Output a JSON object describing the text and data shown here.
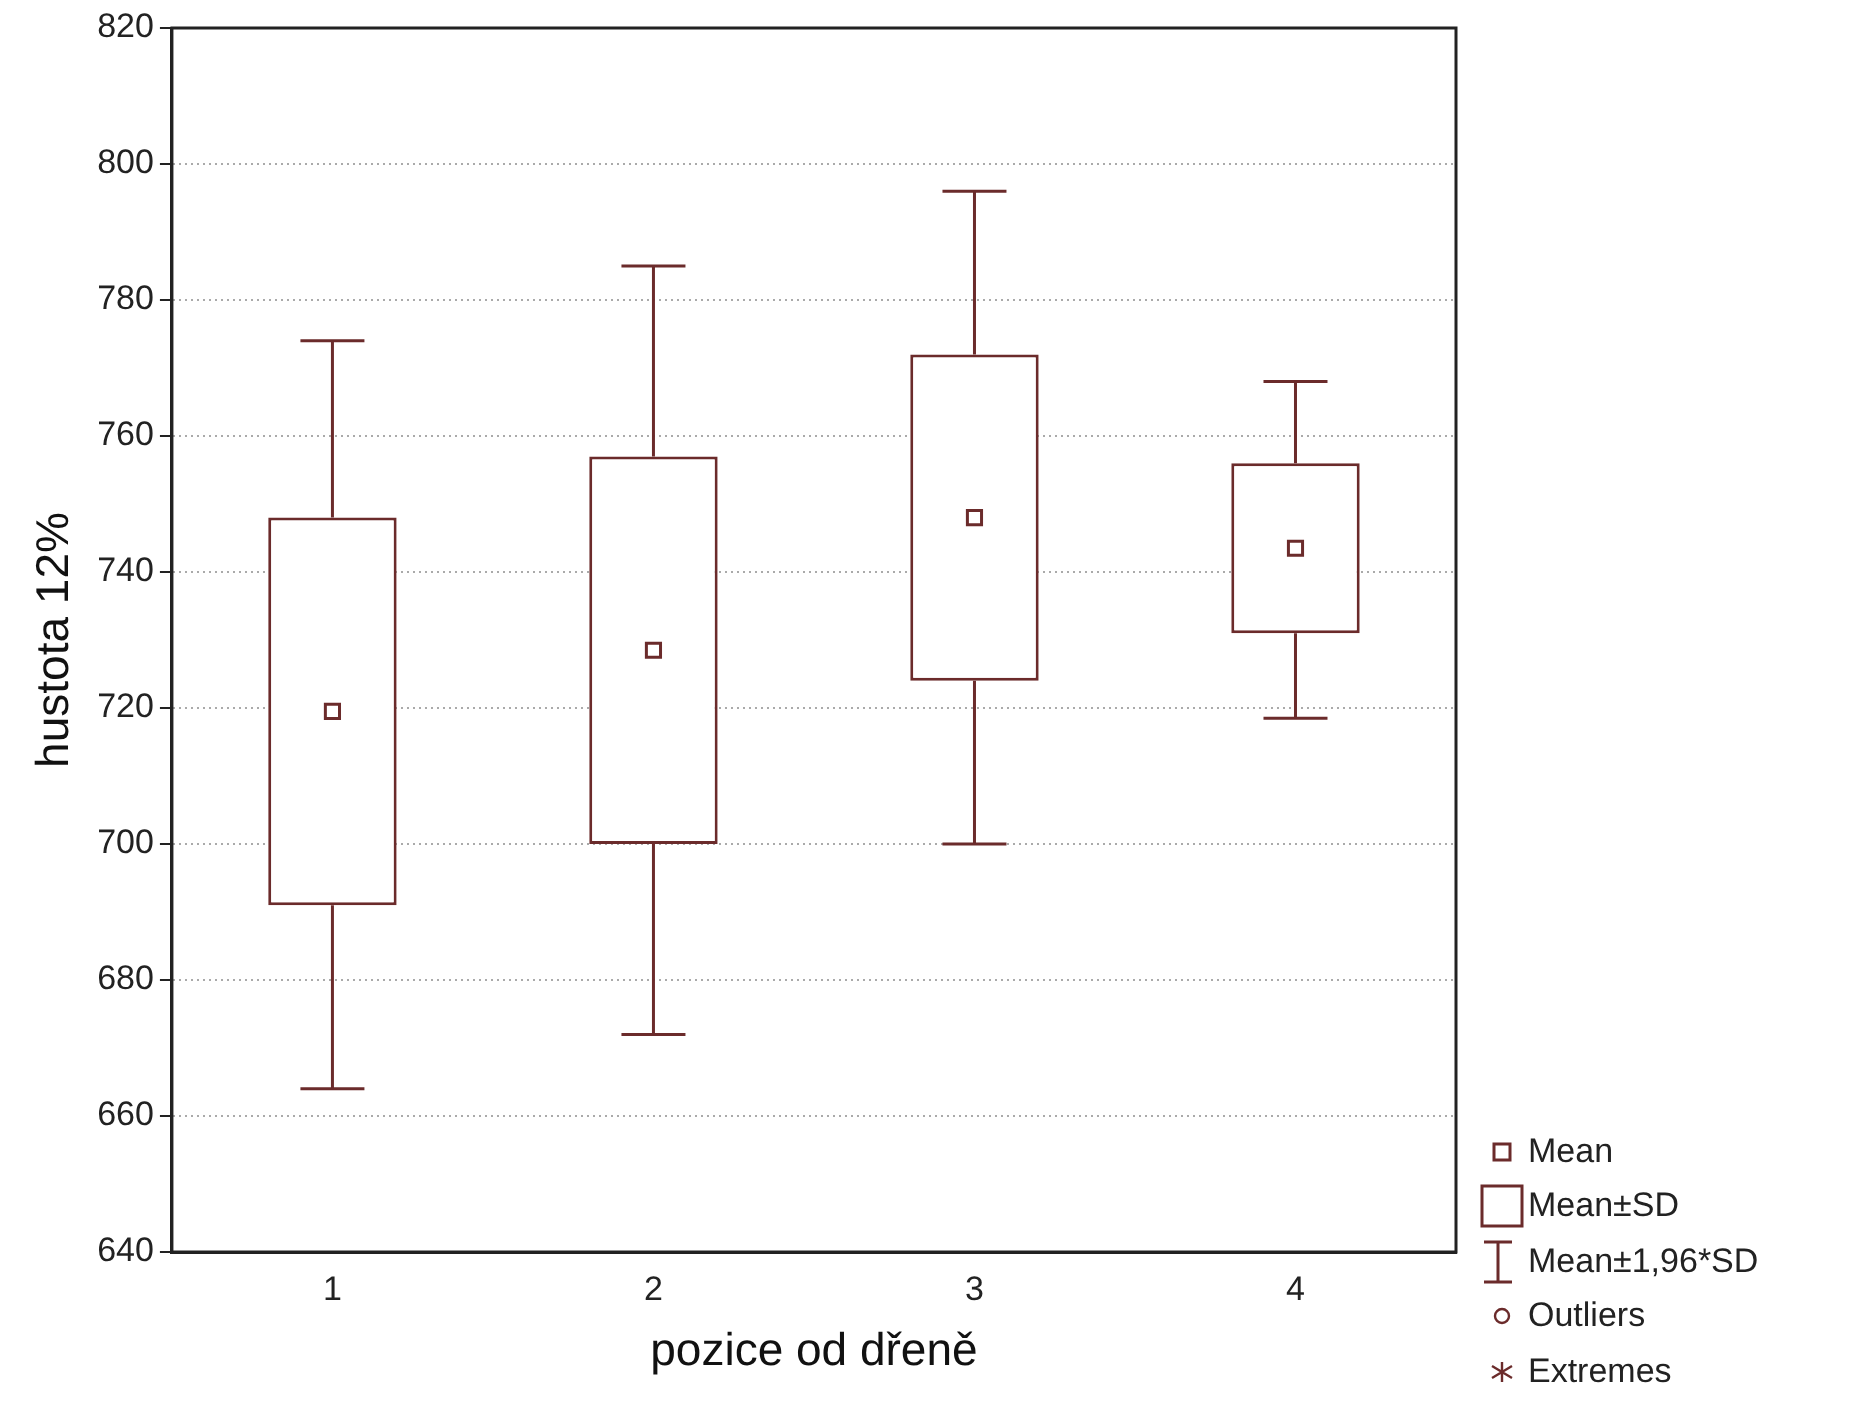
{
  "chart_data": {
    "type": "box",
    "xlabel": "pozice od dřeně",
    "ylabel": "hustota 12%",
    "categories": [
      "1",
      "2",
      "3",
      "4"
    ],
    "color": "#6b2b2b",
    "boxes": [
      {
        "low": 664,
        "q1": 691,
        "q3": 748,
        "high": 774,
        "mean": 719.5
      },
      {
        "low": 672,
        "q1": 700,
        "q3": 757,
        "high": 785,
        "mean": 728.5
      },
      {
        "low": 700,
        "q1": 724,
        "q3": 772,
        "high": 796,
        "mean": 748
      },
      {
        "low": 718.5,
        "q1": 731,
        "q3": 756,
        "high": 768,
        "mean": 743.5
      }
    ],
    "ylim": [
      640,
      820
    ],
    "yticks": [
      640,
      660,
      680,
      700,
      720,
      740,
      760,
      780,
      800,
      820
    ],
    "grid": "y",
    "annotations": [
      "Mean",
      "Mean±SD",
      "Mean±1,96*SD",
      "Outliers",
      "Extremes"
    ]
  }
}
